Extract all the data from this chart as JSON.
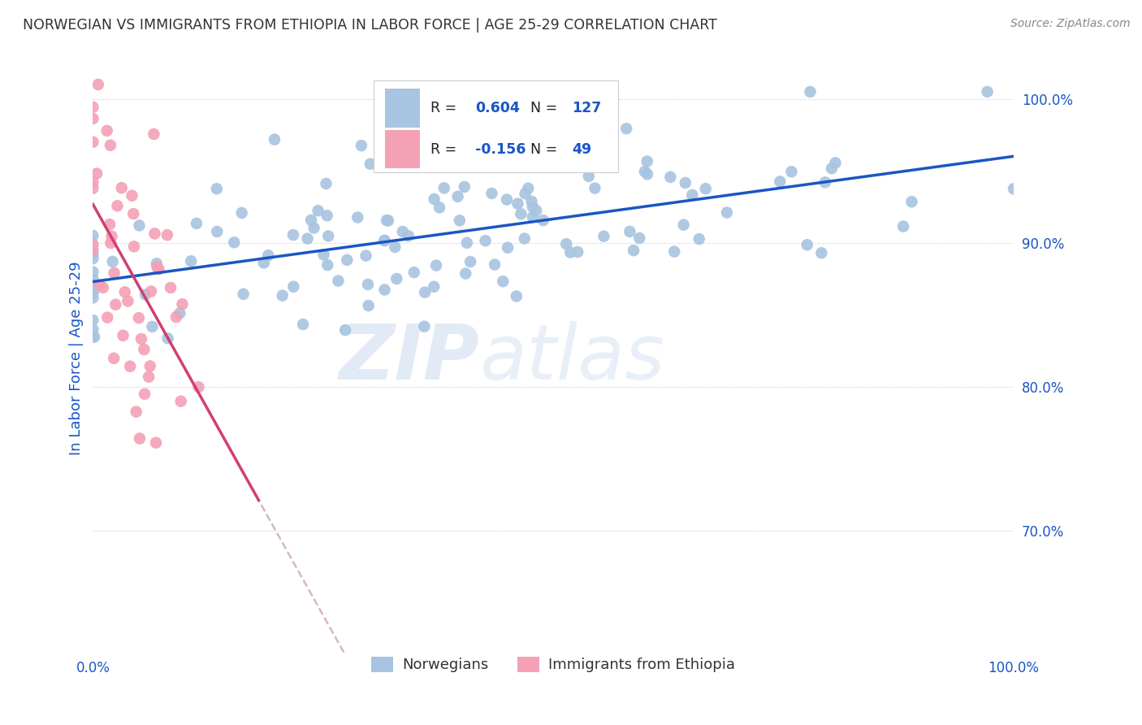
{
  "title": "NORWEGIAN VS IMMIGRANTS FROM ETHIOPIA IN LABOR FORCE | AGE 25-29 CORRELATION CHART",
  "source": "Source: ZipAtlas.com",
  "ylabel": "In Labor Force | Age 25-29",
  "xlim": [
    0.0,
    1.0
  ],
  "ylim": [
    0.615,
    1.025
  ],
  "xtick_labels": [
    "0.0%",
    "100.0%"
  ],
  "ytick_labels": [
    "70.0%",
    "80.0%",
    "90.0%",
    "100.0%"
  ],
  "ytick_positions": [
    0.7,
    0.8,
    0.9,
    1.0
  ],
  "legend_labels": [
    "Norwegians",
    "Immigrants from Ethiopia"
  ],
  "R_norwegian": 0.604,
  "N_norwegian": 127,
  "R_ethiopia": -0.156,
  "N_ethiopia": 49,
  "norwegian_color": "#a8c4e0",
  "ethiopia_color": "#f4a0b5",
  "trendline_norwegian_color": "#1a56c4",
  "trendline_ethiopia_color": "#d04070",
  "trendline_ethiopia_dashed_color": "#c8a0b0",
  "watermark_zip": "ZIP",
  "watermark_atlas": "atlas",
  "background_color": "#ffffff",
  "title_color": "#333333",
  "source_color": "#888888",
  "axis_label_color": "#1a56c4",
  "tick_label_color": "#1a56c4",
  "seed": 42
}
